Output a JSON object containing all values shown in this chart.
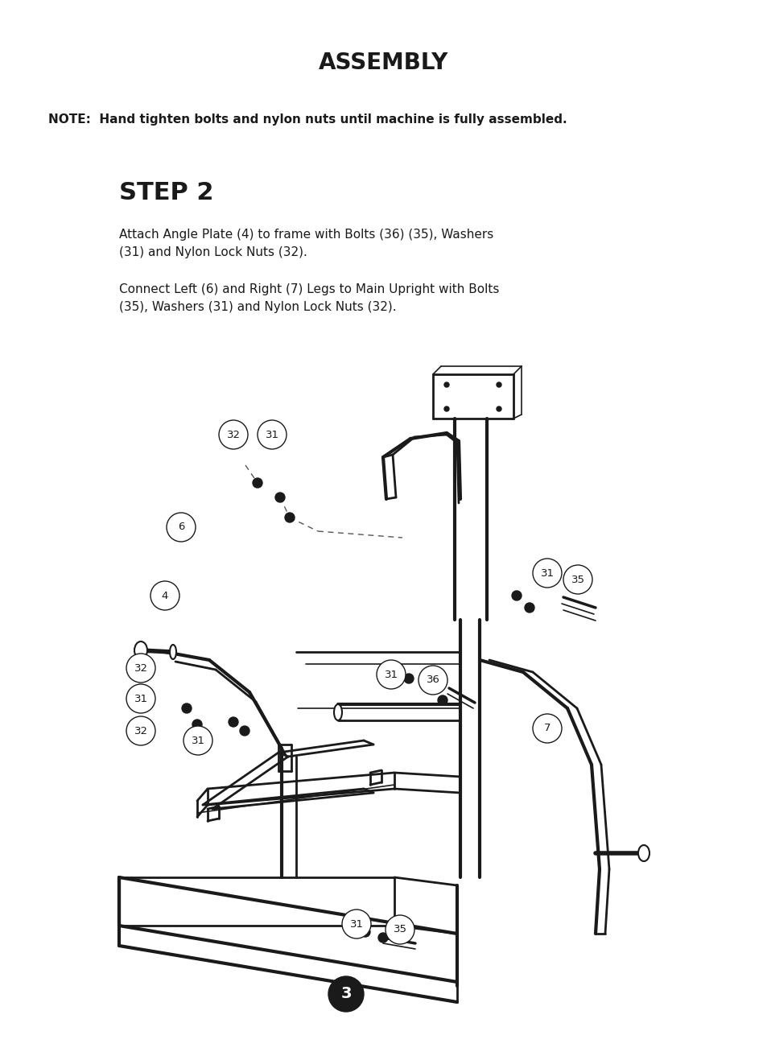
{
  "title": "ASSEMBLY",
  "note_text": "NOTE:  Hand tighten bolts and nylon nuts until machine is fully assembled.",
  "step_label": "STEP 2",
  "step_instructions": [
    "Attach Angle Plate (4) to frame with Bolts (36) (35), Washers\n(31) and Nylon Lock Nuts (32).",
    "Connect Left (6) and Right (7) Legs to Main Upright with Bolts\n(35), Washers (31) and Nylon Lock Nuts (32)."
  ],
  "page_number": "3",
  "bg_color": "#ffffff",
  "text_color": "#1a1a1a",
  "title_fontsize": 20,
  "note_fontsize": 11,
  "step_fontsize": 22,
  "body_fontsize": 11
}
